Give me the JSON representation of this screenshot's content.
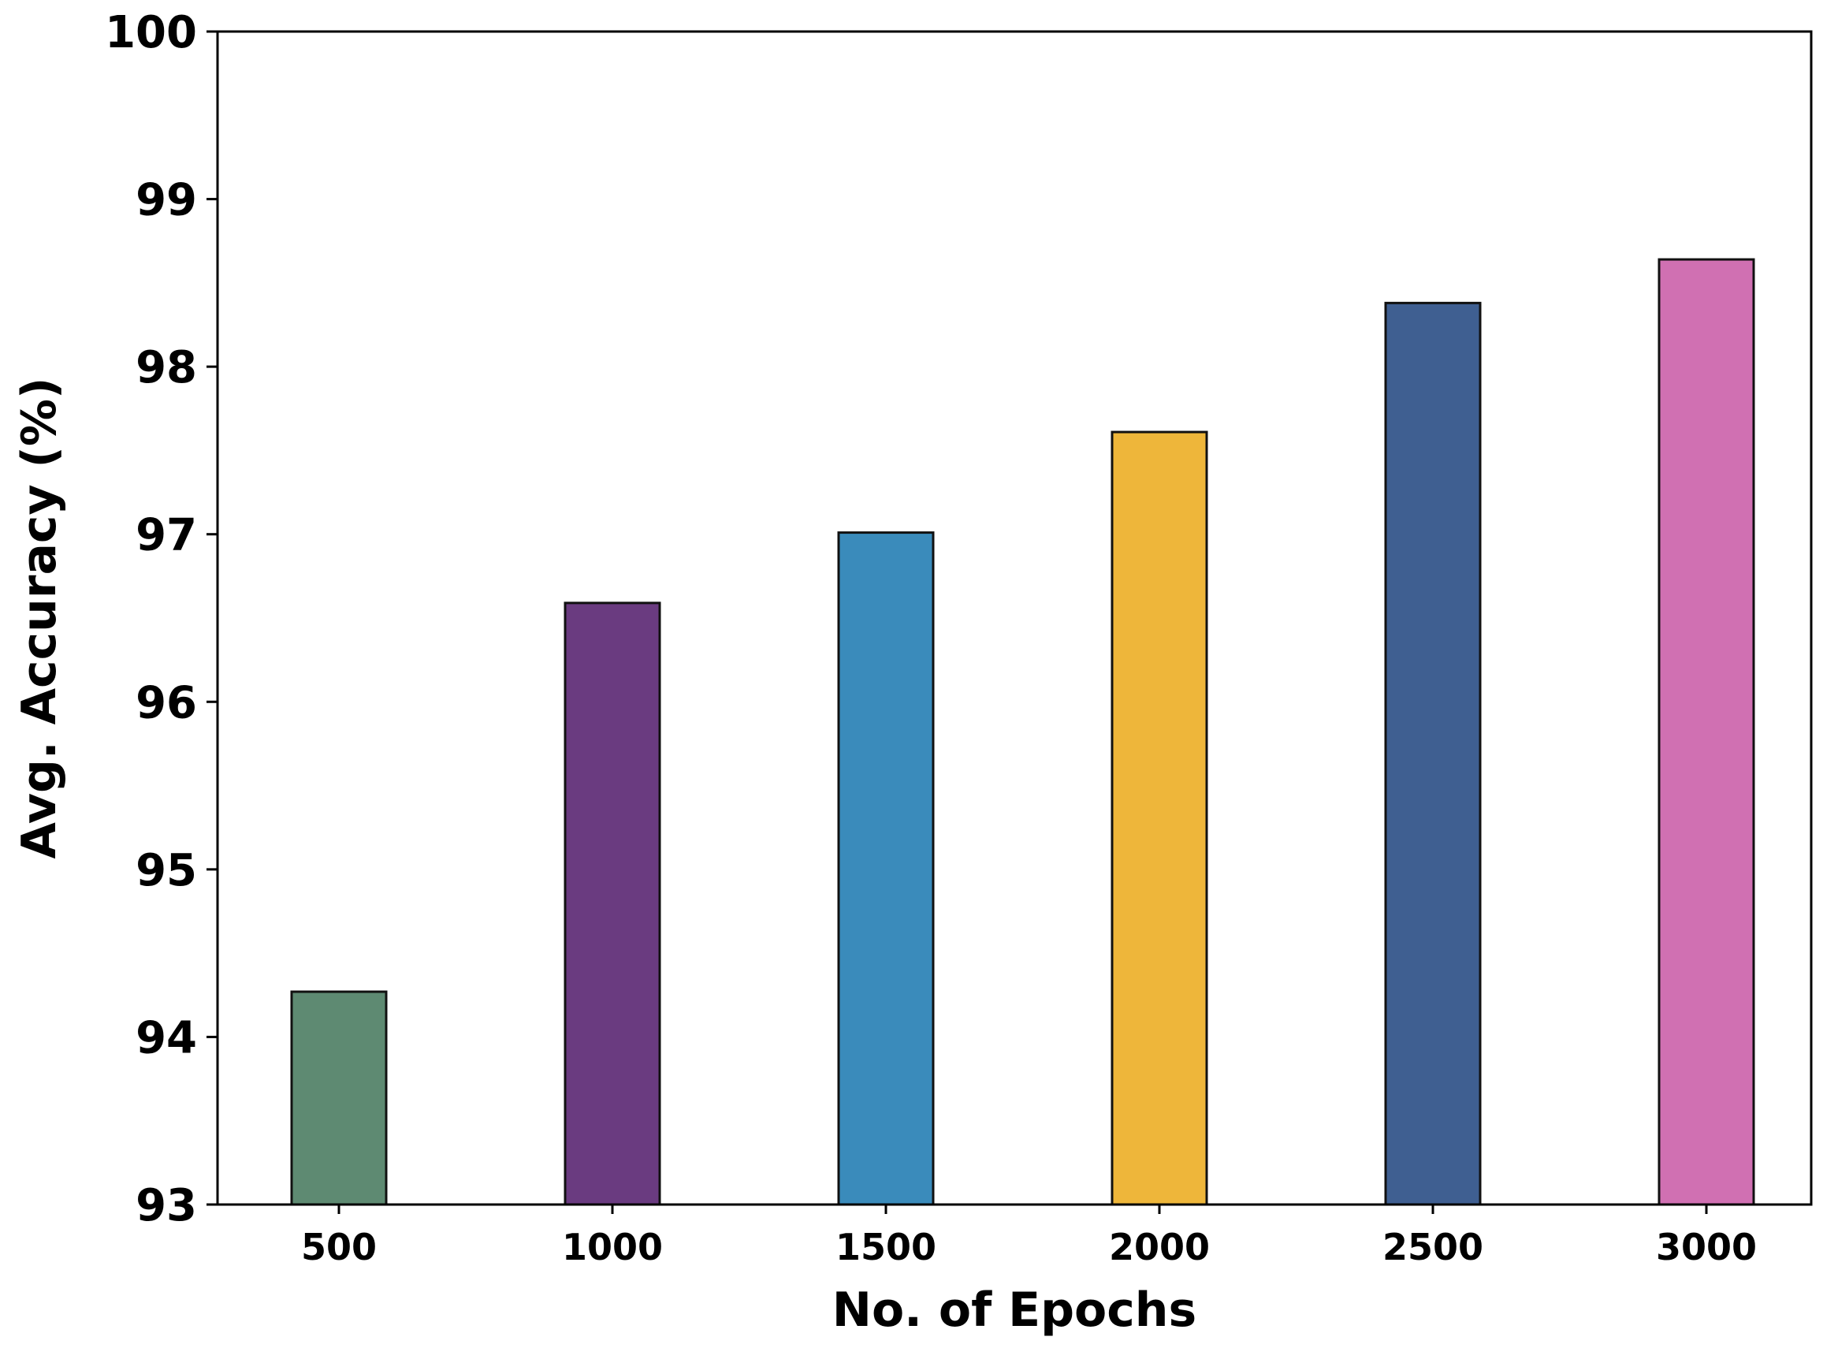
{
  "chart_data": {
    "type": "bar",
    "categories": [
      "500",
      "1000",
      "1500",
      "2000",
      "2500",
      "3000"
    ],
    "values": [
      94.27,
      96.59,
      97.01,
      97.61,
      98.38,
      98.64
    ],
    "colors": [
      "#5e8a72",
      "#6a3b80",
      "#3a8bbb",
      "#eeb63a",
      "#3f5f91",
      "#d070b2"
    ],
    "title": "",
    "xlabel": "No. of Epochs",
    "ylabel": "Avg. Accuracy (%)",
    "ylim": [
      93,
      100
    ],
    "yticks": [
      "93",
      "94",
      "95",
      "96",
      "97",
      "98",
      "99",
      "100"
    ],
    "grid": false,
    "legend": "none"
  }
}
